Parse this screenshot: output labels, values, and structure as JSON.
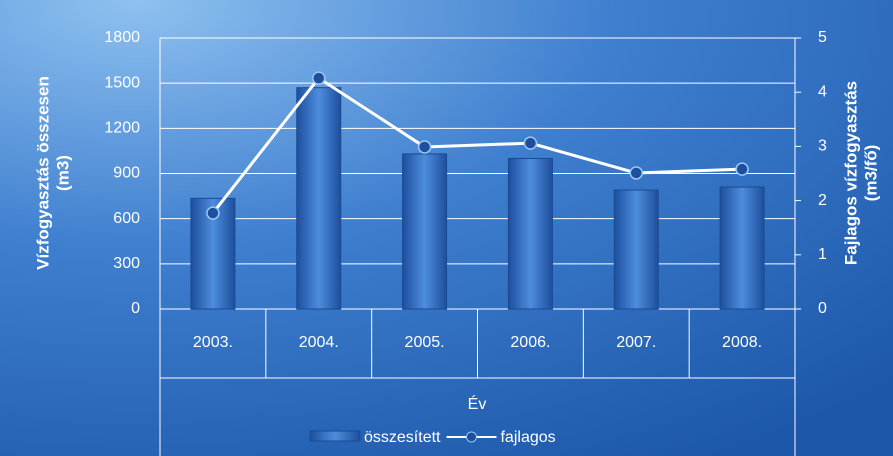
{
  "chart_data": {
    "type": "bar_line",
    "categories": [
      "2003.",
      "2004.",
      "2005.",
      "2006.",
      "2007.",
      "2008."
    ],
    "x_label": "Év",
    "y_label": [
      "Vízfogyasztás összesen",
      "(m3)"
    ],
    "y2_label": [
      "Fajlagos vízfogyasztás",
      "(m3/fő)"
    ],
    "ylim": [
      0,
      1800
    ],
    "yticks": [
      0,
      300,
      600,
      900,
      1200,
      1500,
      1800
    ],
    "y2lim": [
      0,
      5
    ],
    "y2ticks": [
      0,
      1,
      2,
      3,
      4,
      5
    ],
    "grid": true,
    "series": [
      {
        "name": "összesített",
        "type": "bar",
        "color": "#2f6ec4",
        "values": [
          735,
          1470,
          1030,
          1000,
          790,
          810
        ]
      },
      {
        "name": "fajlagos",
        "type": "line",
        "axis": "y2",
        "color": "#ffffff",
        "values": [
          1.77,
          4.26,
          2.99,
          3.06,
          2.51,
          2.58
        ]
      }
    ],
    "legend": "bottom"
  }
}
